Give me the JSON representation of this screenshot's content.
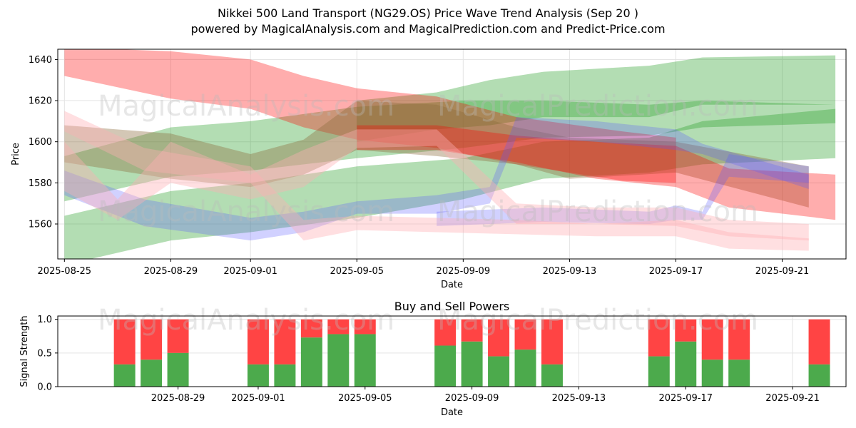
{
  "title_line1": "Nikkei 500 Land Transport (NG29.OS) Price Wave Trend Analysis (Sep 20 )",
  "title_line2": "powered by MagicalAnalysis.com and MagicalPrediction.com and Predict-Price.com",
  "watermarks": [
    "MagicalAnalysis.com",
    "MagicalPrediction.com"
  ],
  "colors": {
    "green": "#2ca02c",
    "red": "#ff0000",
    "pink": "#ffb0b5",
    "blue": "#5a5aff",
    "brown": "#8b6b3d",
    "buy": "#4caa4c",
    "sell": "#ff4444"
  },
  "chart_data": [
    {
      "type": "area",
      "ylabel": "Price",
      "xlabel": "Date",
      "xlim": [
        "2025-08-24.75",
        "2025-09-23.4"
      ],
      "ylim": [
        1543,
        1645
      ],
      "xticks": [
        "2025-08-25",
        "2025-08-29",
        "2025-09-01",
        "2025-09-05",
        "2025-09-09",
        "2025-09-13",
        "2025-09-17",
        "2025-09-21"
      ],
      "yticks": [
        1560,
        1580,
        1600,
        1620,
        1640
      ],
      "grid": true,
      "bands": [
        {
          "color": "green",
          "x": [
            "2025-08-25",
            "2025-08-29",
            "2025-09-01",
            "2025-09-05",
            "2025-09-09",
            "2025-09-12",
            "2025-09-16",
            "2025-09-18",
            "2025-09-23"
          ],
          "lo": [
            1571,
            1583,
            1586,
            1592,
            1597,
            1602,
            1603,
            1607,
            1609
          ],
          "hi": [
            1593,
            1607,
            1610,
            1617,
            1620,
            1620,
            1618,
            1620,
            1618
          ]
        },
        {
          "color": "green",
          "x": [
            "2025-08-25",
            "2025-08-29",
            "2025-09-01",
            "2025-09-05",
            "2025-09-09",
            "2025-09-12",
            "2025-09-16",
            "2025-09-18",
            "2025-09-23"
          ],
          "lo": [
            1540,
            1552,
            1556,
            1563,
            1572,
            1582,
            1585,
            1589,
            1592
          ],
          "hi": [
            1564,
            1576,
            1580,
            1588,
            1592,
            1600,
            1602,
            1610,
            1616
          ]
        },
        {
          "color": "green",
          "x": [
            "2025-09-05",
            "2025-09-08",
            "2025-09-10",
            "2025-09-12",
            "2025-09-16",
            "2025-09-18",
            "2025-09-23"
          ],
          "lo": [
            1600,
            1606,
            1608,
            1612,
            1612,
            1618,
            1618
          ],
          "hi": [
            1620,
            1624,
            1630,
            1634,
            1637,
            1641,
            1642
          ]
        },
        {
          "color": "red",
          "x": [
            "2025-08-25",
            "2025-08-29",
            "2025-09-01",
            "2025-09-03",
            "2025-09-05",
            "2025-09-08",
            "2025-09-11",
            "2025-09-15",
            "2025-09-17"
          ],
          "lo": [
            1632,
            1621,
            1616,
            1607,
            1601,
            1597,
            1589,
            1581,
            1580
          ],
          "hi": [
            1646,
            1644,
            1640,
            1632,
            1626,
            1622,
            1612,
            1605,
            1602
          ]
        },
        {
          "color": "brown",
          "x": [
            "2025-08-25",
            "2025-08-29",
            "2025-09-01",
            "2025-09-03",
            "2025-09-05",
            "2025-09-08",
            "2025-09-11",
            "2025-09-13",
            "2025-09-17",
            "2025-09-22"
          ],
          "lo": [
            1590,
            1582,
            1578,
            1584,
            1596,
            1593,
            1589,
            1582,
            1585,
            1568
          ],
          "hi": [
            1608,
            1604,
            1594,
            1601,
            1620,
            1618,
            1607,
            1602,
            1600,
            1588
          ]
        },
        {
          "color": "red",
          "x": [
            "2025-09-05",
            "2025-09-08",
            "2025-09-11",
            "2025-09-14",
            "2025-09-17",
            "2025-09-19",
            "2025-09-23"
          ],
          "lo": [
            1596,
            1596,
            1590,
            1582,
            1578,
            1568,
            1562
          ],
          "hi": [
            1608,
            1608,
            1603,
            1600,
            1598,
            1587,
            1584
          ]
        },
        {
          "color": "blue",
          "x": [
            "2025-08-25",
            "2025-08-28",
            "2025-09-01",
            "2025-09-03",
            "2025-09-05",
            "2025-09-08",
            "2025-09-10",
            "2025-09-11",
            "2025-09-14",
            "2025-09-17",
            "2025-09-18",
            "2025-09-22"
          ],
          "lo": [
            1574,
            1559,
            1552,
            1556,
            1565,
            1565,
            1570,
            1602,
            1600,
            1596,
            1594,
            1577
          ],
          "hi": [
            1586,
            1572,
            1563,
            1566,
            1571,
            1574,
            1578,
            1612,
            1610,
            1606,
            1599,
            1584
          ]
        },
        {
          "color": "blue",
          "x": [
            "2025-09-08",
            "2025-09-12",
            "2025-09-16",
            "2025-09-17",
            "2025-09-18",
            "2025-09-19",
            "2025-09-22"
          ],
          "lo": [
            1559,
            1561,
            1560,
            1562,
            1562,
            1583,
            1580
          ],
          "hi": [
            1566,
            1568,
            1566,
            1569,
            1566,
            1594,
            1588
          ]
        },
        {
          "color": "pink",
          "x": [
            "2025-08-25",
            "2025-08-28",
            "2025-09-01",
            "2025-09-03",
            "2025-09-05",
            "2025-09-08",
            "2025-09-11",
            "2025-09-14",
            "2025-09-17",
            "2025-09-19",
            "2025-09-22"
          ],
          "lo": [
            1605,
            1586,
            1580,
            1552,
            1557,
            1556,
            1555,
            1554,
            1554,
            1548,
            1547
          ],
          "hi": [
            1615,
            1597,
            1588,
            1562,
            1564,
            1563,
            1562,
            1560,
            1562,
            1556,
            1553
          ]
        },
        {
          "color": "pink",
          "x": [
            "2025-08-25",
            "2025-08-27",
            "2025-08-29",
            "2025-09-01",
            "2025-09-03",
            "2025-09-05",
            "2025-09-08",
            "2025-09-11",
            "2025-09-14",
            "2025-09-17",
            "2025-09-19",
            "2025-09-22"
          ],
          "lo": [
            1576,
            1562,
            1580,
            1572,
            1578,
            1597,
            1598,
            1560,
            1560,
            1559,
            1554,
            1552
          ],
          "hi": [
            1600,
            1572,
            1600,
            1584,
            1596,
            1606,
            1606,
            1570,
            1568,
            1568,
            1562,
            1560
          ]
        }
      ]
    },
    {
      "type": "bar",
      "title": "Buy and Sell Powers",
      "ylabel": "Signal Strength",
      "xlabel": "Date",
      "ylim": [
        0,
        1.05
      ],
      "yticks": [
        "0.0",
        "0.5",
        "1.0"
      ],
      "xticks": [
        "2025-08-29",
        "2025-09-01",
        "2025-09-05",
        "2025-09-09",
        "2025-09-13",
        "2025-09-17",
        "2025-09-21"
      ],
      "series": [
        {
          "name": "buy",
          "x": [
            "2025-08-27",
            "2025-08-28",
            "2025-08-29",
            "2025-09-01",
            "2025-09-02",
            "2025-09-03",
            "2025-09-04",
            "2025-09-05",
            "2025-09-08",
            "2025-09-09",
            "2025-09-10",
            "2025-09-11",
            "2025-09-12",
            "2025-09-16",
            "2025-09-17",
            "2025-09-18",
            "2025-09-19",
            "2025-09-22"
          ],
          "values": [
            0.33,
            0.4,
            0.5,
            0.33,
            0.33,
            0.73,
            0.78,
            0.78,
            0.61,
            0.67,
            0.45,
            0.55,
            0.33,
            0.45,
            0.67,
            0.4,
            0.4,
            0.33
          ]
        }
      ]
    }
  ]
}
